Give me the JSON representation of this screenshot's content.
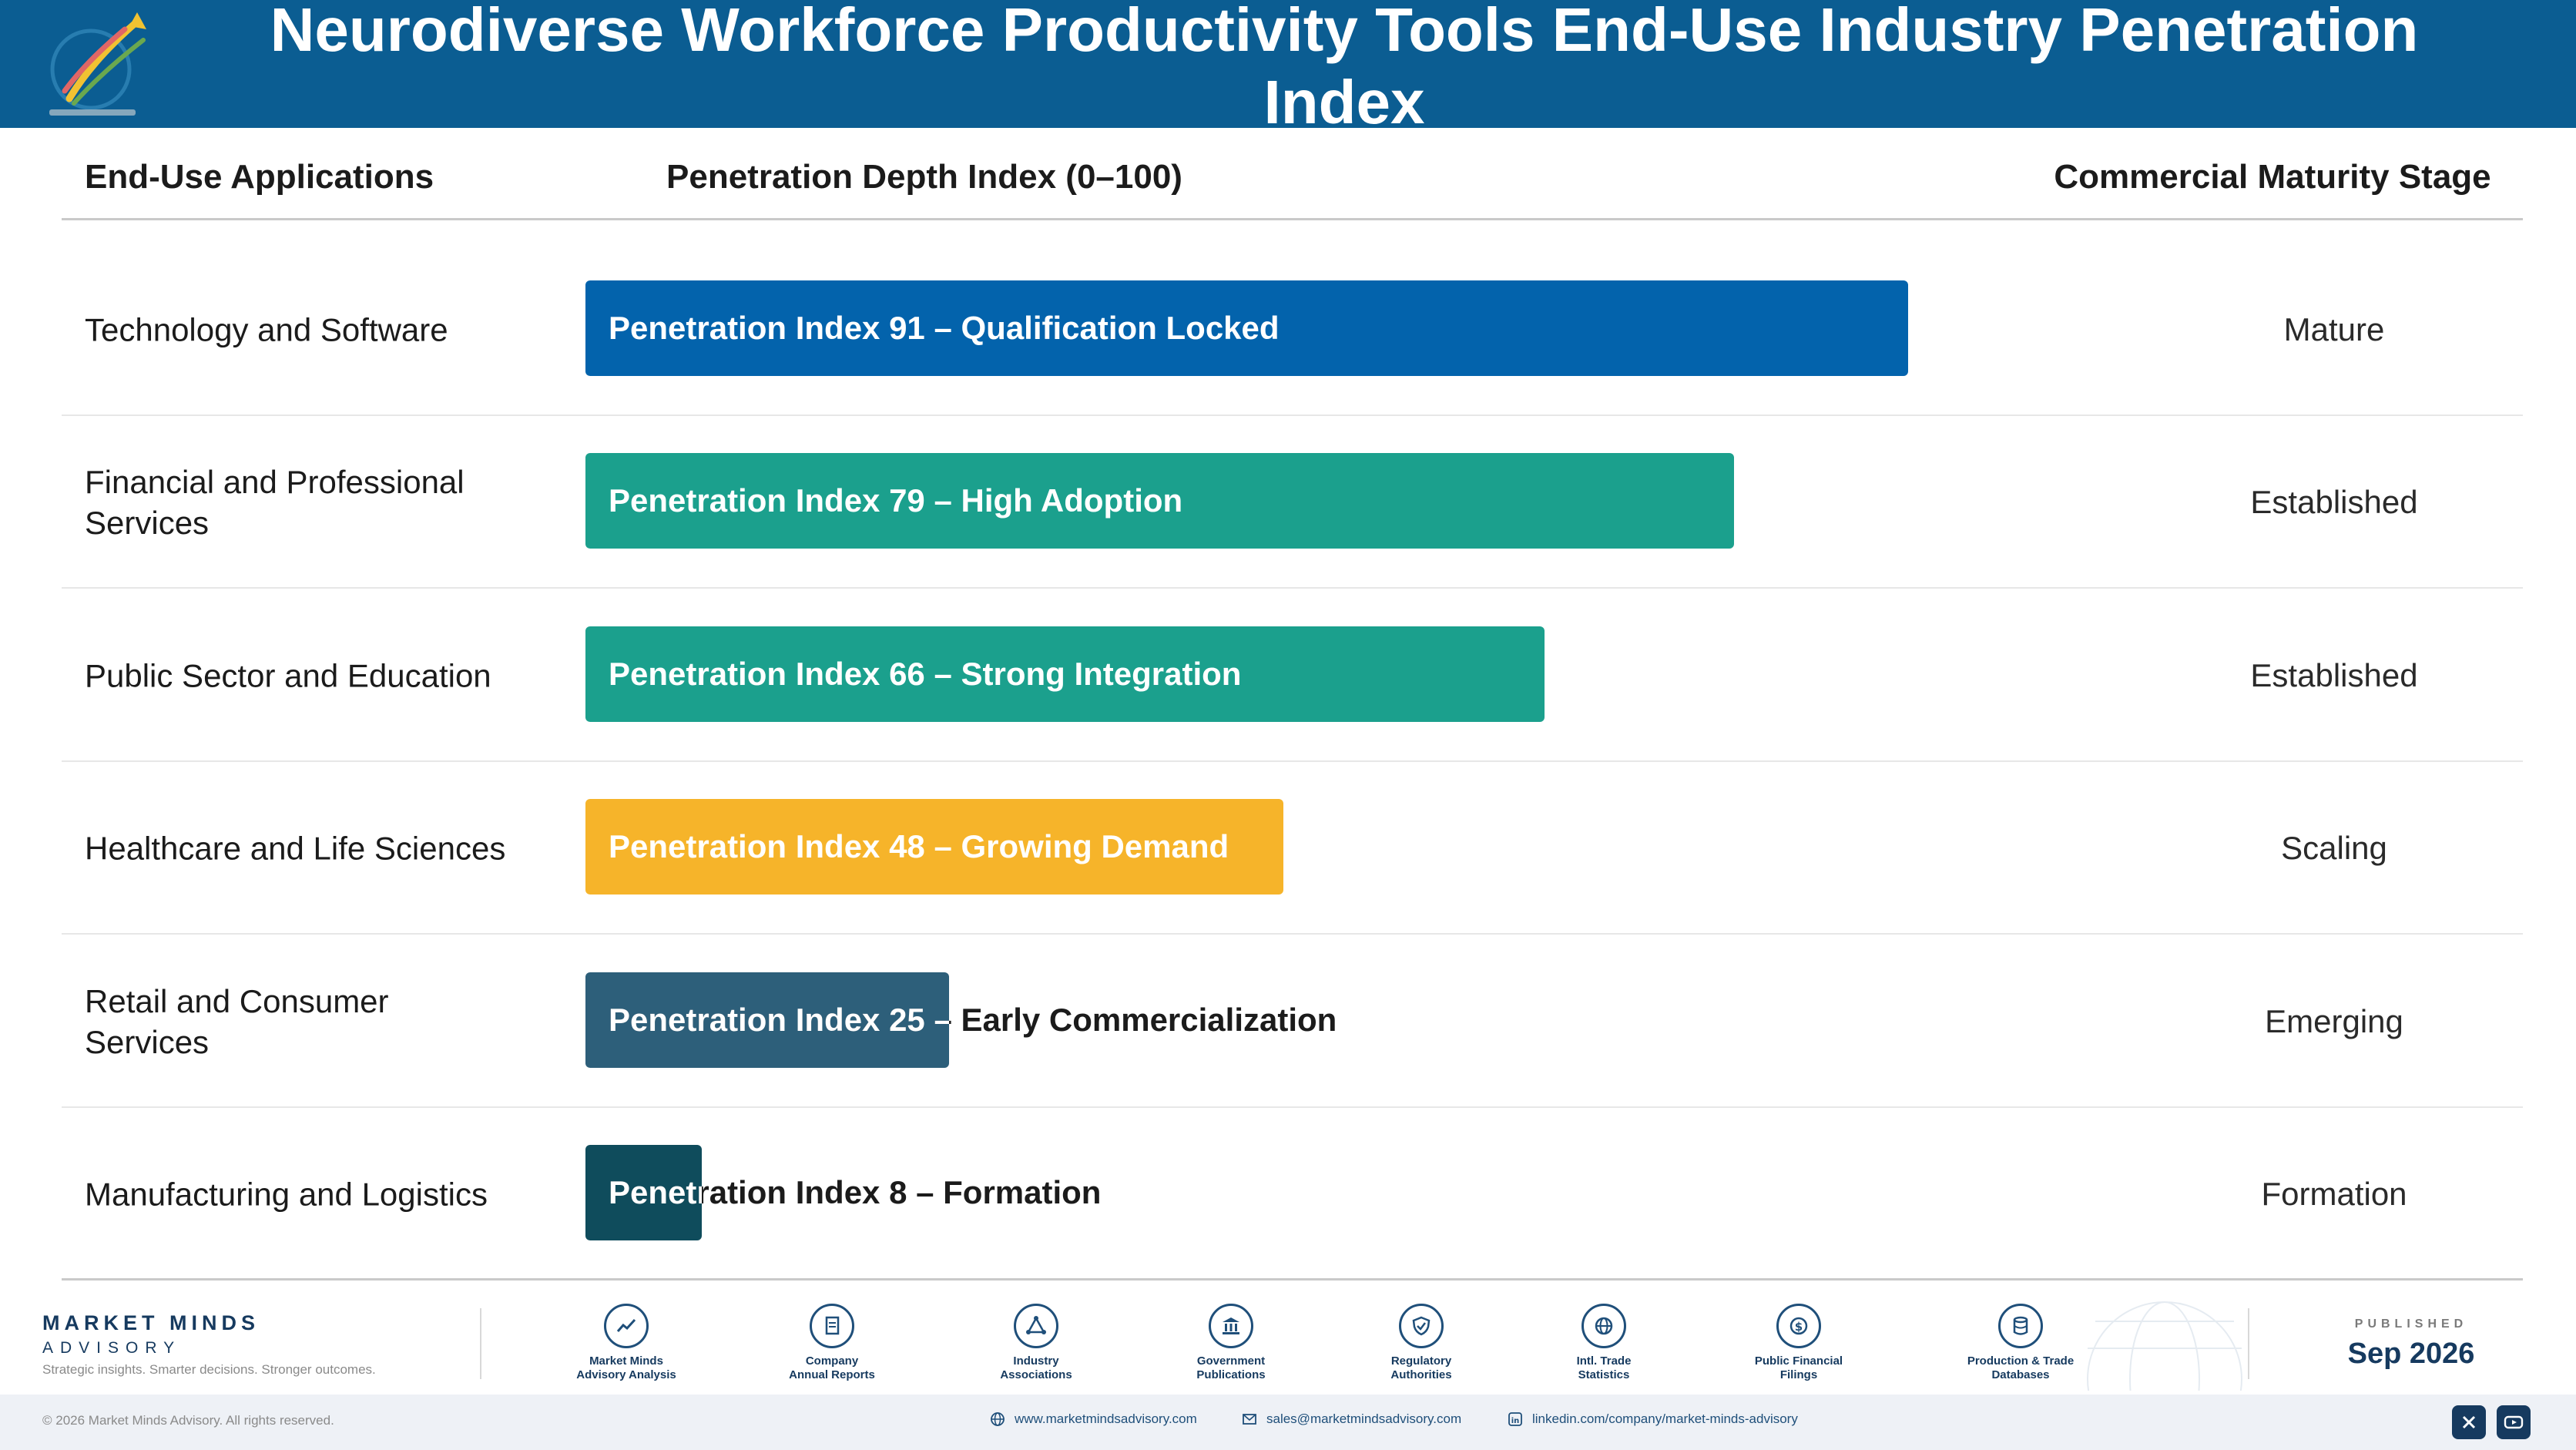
{
  "header": {
    "title": "Neurodiverse Workforce Productivity Tools End-Use Industry Penetration Index",
    "logo_text": "Market Minds Advisory"
  },
  "columns": {
    "applications": "End-Use Applications",
    "depth": "Penetration Depth Index (0–100)",
    "stage": "Commercial Maturity Stage"
  },
  "chart_data": {
    "type": "bar",
    "orientation": "horizontal",
    "title": "Neurodiverse Workforce Productivity Tools End-Use Industry Penetration Index",
    "xlabel": "Penetration Depth Index (0–100)",
    "ylabel": "End-Use Applications",
    "xlim": [
      0,
      100
    ],
    "grid": false,
    "categories": [
      "Technology and Software",
      "Financial and Professional Services",
      "Public Sector and Education",
      "Healthcare and Life Sciences",
      "Retail and Consumer Services",
      "Manufacturing and Logistics"
    ],
    "values": [
      91,
      79,
      66,
      48,
      25,
      8
    ],
    "bar_labels": [
      "Penetration Index 91 – Qualification Locked",
      "Penetration Index 79 – High Adoption",
      "Penetration Index 66 – Strong Integration",
      "Penetration Index 48 – Growing Demand",
      "Penetration Index 25 – Early Commercialization",
      "Penetration Index 8 – Formation"
    ],
    "maturity_stages": [
      "Mature",
      "Established",
      "Established",
      "Scaling",
      "Emerging",
      "Formation"
    ],
    "colors": [
      "#0363ac",
      "#1ba08d",
      "#1ba08d",
      "#f6b42a",
      "#2d5f7a",
      "#0f4c5c"
    ]
  },
  "footer": {
    "brand_name": "MARKET MINDS",
    "brand_sub": "ADVISORY",
    "tagline": "Strategic insights. Smarter decisions. Stronger outcomes.",
    "sources": [
      {
        "line1": "Market Minds",
        "line2": "Advisory Analysis",
        "icon": "trend-chart-icon"
      },
      {
        "line1": "Company",
        "line2": "Annual Reports",
        "icon": "document-icon"
      },
      {
        "line1": "Industry",
        "line2": "Associations",
        "icon": "network-icon"
      },
      {
        "line1": "Government",
        "line2": "Publications",
        "icon": "government-building-icon"
      },
      {
        "line1": "Regulatory",
        "line2": "Authorities",
        "icon": "shield-check-icon"
      },
      {
        "line1": "Intl. Trade",
        "line2": "Statistics",
        "icon": "globe-icon"
      },
      {
        "line1": "Public Financial",
        "line2": "Filings",
        "icon": "dollar-coin-icon"
      },
      {
        "line1": "Production & Trade",
        "line2": "Databases",
        "icon": "database-icon"
      }
    ],
    "published_caption": "PUBLISHED",
    "published_date": "Sep 2026",
    "copyright": "© 2026 Market Minds Advisory. All rights reserved.",
    "website": "www.marketmindsadvisory.com",
    "email": "sales@marketmindsadvisory.com",
    "linkedin": "linkedin.com/company/market-minds-advisory"
  }
}
